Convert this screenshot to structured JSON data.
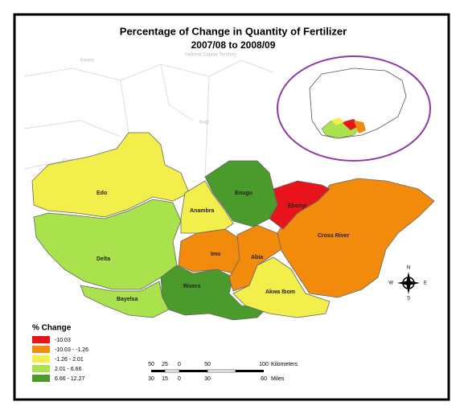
{
  "map": {
    "title": "Percentage of Change in Quantity of Fertilizer",
    "subtitle": "2007/08 to 2008/09",
    "background_labels": [
      "Kwara",
      "Federal Capital Territory",
      "Kogi",
      "Ondo"
    ],
    "states": [
      {
        "name": "Edo",
        "class": 2
      },
      {
        "name": "Delta",
        "class": 3
      },
      {
        "name": "Bayelsa",
        "class": 3
      },
      {
        "name": "Rivers",
        "class": 4
      },
      {
        "name": "Imo",
        "class": 1
      },
      {
        "name": "Abia",
        "class": 1
      },
      {
        "name": "Akwa Ibom",
        "class": 2
      },
      {
        "name": "Cross River",
        "class": 1
      },
      {
        "name": "Ebonyi",
        "class": 0
      },
      {
        "name": "Enugu",
        "class": 4
      },
      {
        "name": "Anambra",
        "class": 2
      }
    ],
    "legend": {
      "title": "% Change",
      "items": [
        {
          "label": "-10.03",
          "color": "#e8141c"
        },
        {
          "label": "-10.03 - -1.26",
          "color": "#f28a0c"
        },
        {
          "label": "-1.26 - 2.01",
          "color": "#f2ee4c"
        },
        {
          "label": "2.01 - 6.66",
          "color": "#a9e24c"
        },
        {
          "label": "6.66 - 12.27",
          "color": "#4b9a2c"
        }
      ]
    },
    "scale": {
      "km": [
        50,
        25,
        0,
        50,
        100
      ],
      "km_unit": "Kilometers",
      "miles": [
        30,
        15,
        0,
        30,
        60
      ],
      "miles_unit": "Miles"
    },
    "compass": {
      "n": "N",
      "s": "S",
      "e": "E",
      "w": "W"
    }
  }
}
